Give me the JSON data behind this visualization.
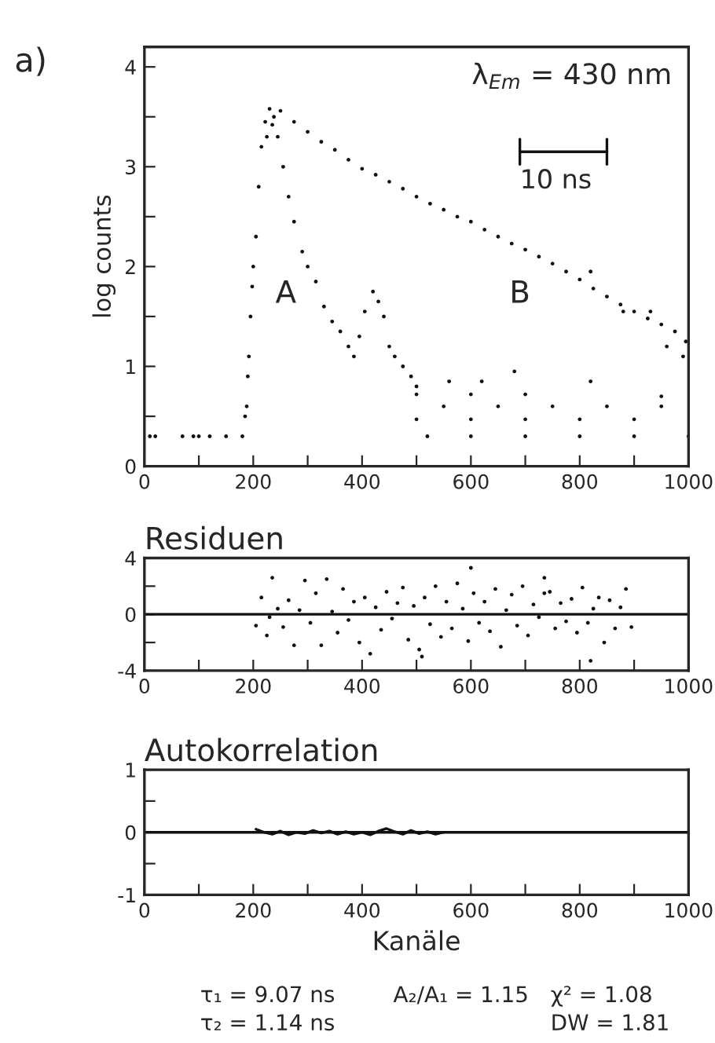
{
  "chart_data": [
    {
      "type": "scatter",
      "ylabel": "log counts",
      "xlim": [
        0,
        1000
      ],
      "ylim": [
        0,
        4.2
      ],
      "xticks": [
        0,
        {
          "value": 100,
          "label": null
        },
        200,
        {
          "value": 300,
          "label": null
        },
        400,
        {
          "value": 500,
          "label": null
        },
        600,
        {
          "value": 700,
          "label": null
        },
        800,
        {
          "value": 900,
          "label": null
        },
        1000
      ],
      "yticks": [
        0,
        {
          "value": 0.5,
          "label": null
        },
        1,
        {
          "value": 1.5,
          "label": null
        },
        2,
        {
          "value": 2.5,
          "label": null
        },
        3,
        {
          "value": 3.5,
          "label": null
        },
        4
      ],
      "marker": "circle",
      "grid": false,
      "legend": false,
      "annotations": [
        "a)",
        "λ$_{Em}$ = 430 nm",
        "10 ns",
        "A",
        "B"
      ],
      "series": [
        {
          "color": "#111111",
          "x": [
            10,
            20,
            70,
            90,
            100,
            120,
            150,
            180,
            185,
            188,
            190,
            192,
            195,
            198,
            200,
            205,
            210,
            215,
            222,
            230,
            238,
            245,
            255,
            265,
            275,
            290,
            300,
            315,
            330,
            345,
            360,
            375,
            385,
            395,
            405,
            420,
            430,
            440,
            450,
            460,
            475,
            490,
            500,
            520,
            600,
            700,
            800,
            900,
            1000,
            500,
            600,
            700,
            800,
            900,
            550,
            650,
            750,
            850,
            950,
            560,
            620,
            680,
            820,
            950,
            500,
            600,
            700
          ],
          "values": [
            0.3,
            0.3,
            0.3,
            0.3,
            0.3,
            0.3,
            0.3,
            0.3,
            0.5,
            0.6,
            0.9,
            1.1,
            1.5,
            1.8,
            2.0,
            2.3,
            2.8,
            3.2,
            3.45,
            3.58,
            3.5,
            3.3,
            3.0,
            2.7,
            2.45,
            2.15,
            2.0,
            1.85,
            1.6,
            1.45,
            1.35,
            1.2,
            1.1,
            1.3,
            1.55,
            1.75,
            1.65,
            1.5,
            1.2,
            1.1,
            1.0,
            0.9,
            0.8,
            0.3,
            0.3,
            0.3,
            0.3,
            0.3,
            0.3,
            0.47,
            0.47,
            0.47,
            0.47,
            0.47,
            0.6,
            0.6,
            0.6,
            0.6,
            0.6,
            0.85,
            0.85,
            0.95,
            0.85,
            0.7,
            0.72,
            0.72,
            0.72
          ]
        },
        {
          "color": "#111111",
          "x": [
            225,
            235,
            250,
            275,
            300,
            325,
            350,
            375,
            400,
            425,
            450,
            475,
            500,
            525,
            550,
            575,
            600,
            625,
            650,
            675,
            700,
            725,
            750,
            775,
            800,
            825,
            850,
            875,
            900,
            925,
            950,
            975,
            995,
            820,
            880,
            930,
            960,
            990
          ],
          "values": [
            3.3,
            3.42,
            3.56,
            3.45,
            3.35,
            3.25,
            3.17,
            3.07,
            2.98,
            2.92,
            2.85,
            2.78,
            2.7,
            2.63,
            2.57,
            2.5,
            2.45,
            2.37,
            2.3,
            2.23,
            2.17,
            2.1,
            2.03,
            1.95,
            1.87,
            1.78,
            1.7,
            1.62,
            1.55,
            1.48,
            1.42,
            1.35,
            1.25,
            1.95,
            1.55,
            1.55,
            1.2,
            1.1
          ]
        }
      ]
    },
    {
      "type": "scatter",
      "title": "Residuen",
      "xlim": [
        0,
        1000
      ],
      "ylim": [
        -4,
        4
      ],
      "xticks": [
        0,
        {
          "value": 100,
          "label": null
        },
        200,
        {
          "value": 300,
          "label": null
        },
        400,
        {
          "value": 500,
          "label": null
        },
        600,
        {
          "value": 700,
          "label": null
        },
        800,
        {
          "value": 900,
          "label": null
        },
        1000
      ],
      "yticks": [
        -4,
        {
          "value": -2,
          "label": null
        },
        0,
        {
          "value": 2,
          "label": null
        },
        4
      ],
      "marker": "circle",
      "grid": false,
      "legend": false,
      "ref_lines": [
        {
          "axis": "y",
          "value": 0,
          "color": "#111111"
        }
      ],
      "series": [
        {
          "color": "#111111",
          "x": [
            205,
            215,
            225,
            235,
            245,
            255,
            265,
            275,
            285,
            295,
            305,
            315,
            325,
            335,
            345,
            355,
            365,
            375,
            385,
            395,
            405,
            415,
            425,
            435,
            445,
            455,
            465,
            475,
            485,
            495,
            505,
            515,
            525,
            535,
            545,
            555,
            565,
            575,
            585,
            595,
            605,
            615,
            625,
            635,
            645,
            655,
            665,
            675,
            685,
            695,
            705,
            715,
            725,
            735,
            745,
            755,
            765,
            775,
            785,
            795,
            805,
            815,
            825,
            835,
            845,
            855,
            865,
            875,
            885,
            895,
            600,
            735,
            820,
            230,
            510
          ],
          "values": [
            -0.8,
            1.2,
            -1.5,
            2.6,
            0.4,
            -0.9,
            1.0,
            -2.2,
            0.3,
            2.4,
            -0.6,
            1.5,
            -2.2,
            2.5,
            0.2,
            -1.3,
            1.8,
            -0.4,
            0.9,
            -2.0,
            1.2,
            -2.8,
            0.5,
            -1.1,
            1.6,
            -0.3,
            0.8,
            1.9,
            -1.8,
            0.6,
            -2.5,
            1.2,
            -0.7,
            2.0,
            -1.6,
            0.9,
            -1.0,
            2.2,
            0.4,
            -1.9,
            1.5,
            -0.6,
            0.9,
            -1.2,
            1.8,
            -2.3,
            0.3,
            1.4,
            -0.8,
            2.0,
            -1.5,
            0.7,
            -0.2,
            2.6,
            1.6,
            -1.0,
            0.8,
            -0.5,
            1.1,
            -1.3,
            1.9,
            -0.6,
            0.4,
            1.2,
            -2.0,
            1.0,
            -1.0,
            0.5,
            1.8,
            -0.9,
            3.3,
            1.5,
            -3.3,
            -0.2,
            -3.0
          ]
        }
      ]
    },
    {
      "type": "line",
      "title": "Autokorrelation",
      "xlabel": "Kanäle",
      "xlim": [
        0,
        1000
      ],
      "ylim": [
        -1,
        1
      ],
      "xticks": [
        0,
        {
          "value": 100,
          "label": null
        },
        200,
        {
          "value": 300,
          "label": null
        },
        400,
        {
          "value": 500,
          "label": null
        },
        600,
        {
          "value": 700,
          "label": null
        },
        800,
        {
          "value": 900,
          "label": null
        },
        1000
      ],
      "yticks": [
        -1,
        {
          "value": -0.5,
          "label": null
        },
        0,
        {
          "value": 0.5,
          "label": null
        },
        1
      ],
      "marker": "none",
      "grid": false,
      "legend": false,
      "ref_lines": [
        {
          "axis": "y",
          "value": 0,
          "color": "#111111"
        }
      ],
      "annotations": [
        "τ₁ = 9.07 ns",
        "A₂/A₁ = 1.15",
        "χ² = 1.08",
        "τ₂ = 1.14 ns",
        "DW = 1.81"
      ],
      "series": [
        {
          "color": "#111111",
          "x": [
            205,
            220,
            235,
            250,
            265,
            280,
            295,
            310,
            325,
            340,
            355,
            370,
            385,
            400,
            415,
            430,
            445,
            460,
            475,
            490,
            505,
            520,
            535,
            550
          ],
          "values": [
            0.05,
            0.0,
            -0.03,
            0.02,
            -0.04,
            0.0,
            -0.02,
            0.03,
            -0.01,
            0.02,
            -0.03,
            0.01,
            -0.03,
            0.0,
            -0.04,
            0.02,
            0.06,
            0.01,
            -0.03,
            0.03,
            -0.02,
            0.01,
            -0.03,
            0.0
          ]
        }
      ]
    }
  ]
}
